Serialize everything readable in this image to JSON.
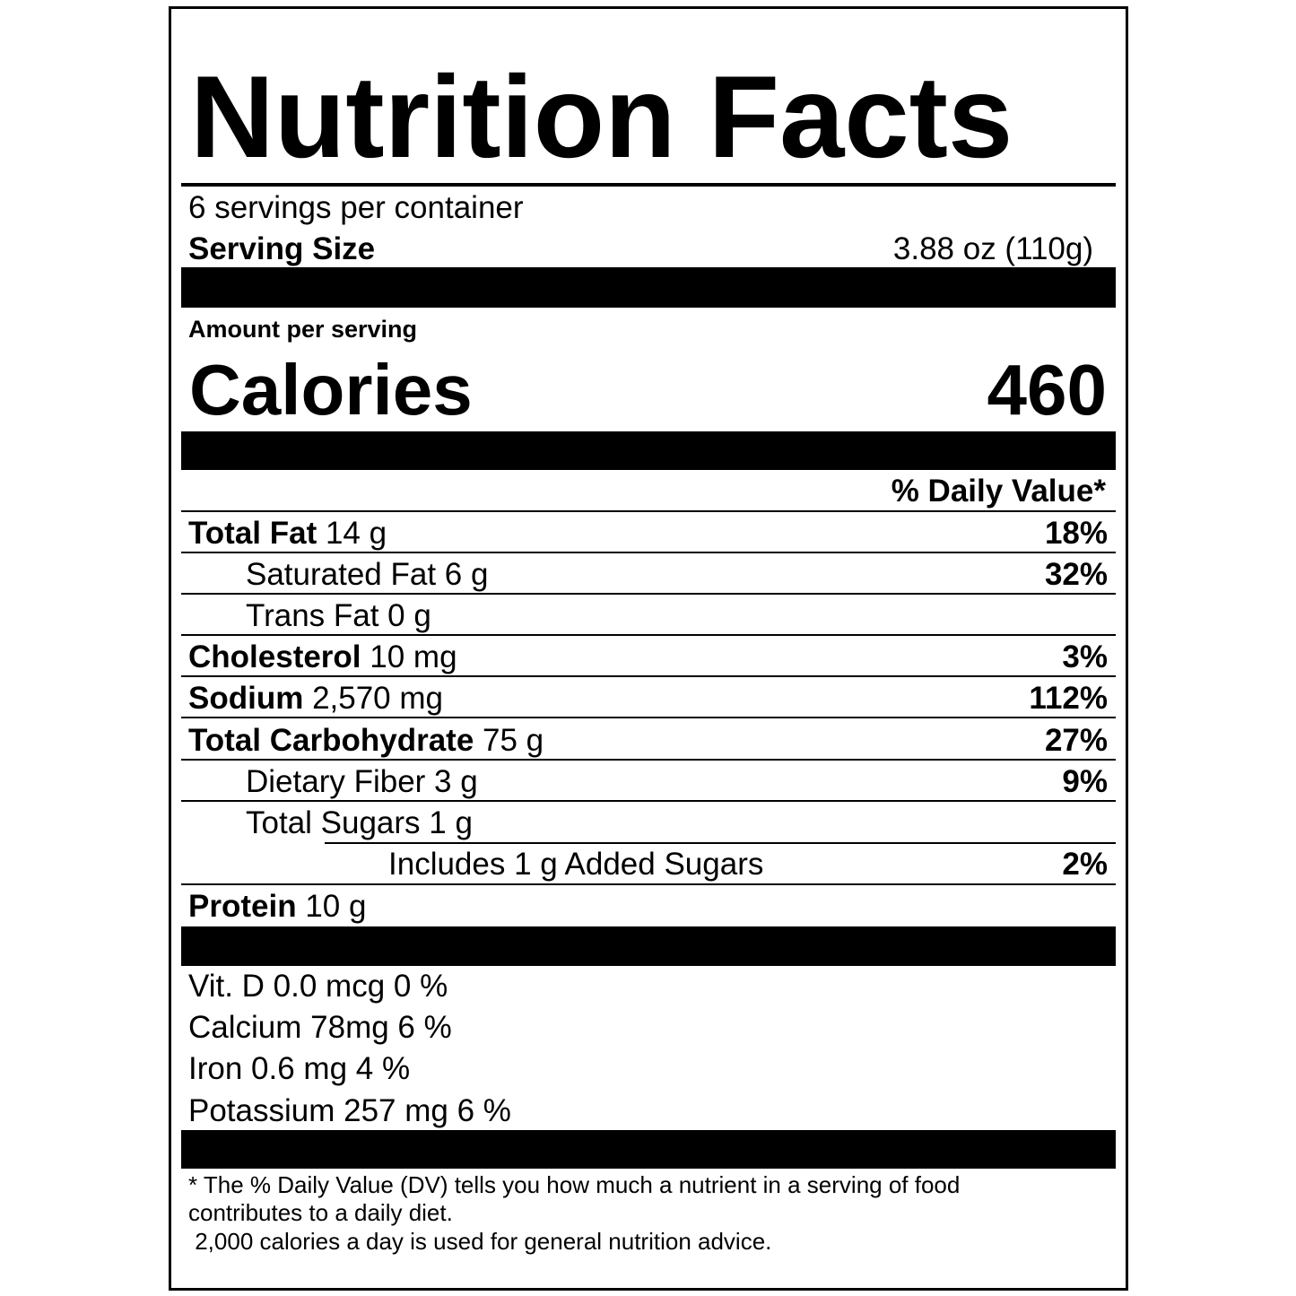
{
  "title": "Nutrition Facts",
  "servings": "6 servings per container",
  "serving_size": {
    "label": "Serving Size",
    "value": "3.88 oz (110g)"
  },
  "amount_per_serving": "Amount per serving",
  "calories": {
    "label": "Calories",
    "value": 460
  },
  "daily_value_header": "% Daily Value*",
  "nutrients": [
    {
      "name": "Total Fat",
      "amount": "14 g",
      "dv": "18%"
    },
    {
      "name": "Saturated Fat 6 g",
      "dv": "32%"
    },
    {
      "name": "Trans Fat 0 g"
    },
    {
      "name": "Cholesterol",
      "amount": "10 mg",
      "dv": "3%"
    },
    {
      "name": "Sodium",
      "amount": "2,570 mg",
      "dv": "112%"
    },
    {
      "name": "Total Carbohydrate",
      "amount": "75 g",
      "dv": "27%"
    },
    {
      "name": "Dietary Fiber 3 g",
      "dv": "9%"
    },
    {
      "name": "Total Sugars 1 g"
    },
    {
      "name": "Includes 1 g Added Sugars",
      "dv": "2%"
    },
    {
      "name": "Protein",
      "amount": "10 g"
    }
  ],
  "vitamins": [
    "Vit. D 0.0 mcg 0 %",
    "Calcium 78mg 6 %",
    "Iron 0.6 mg 4 %",
    "Potassium 257 mg 6 %"
  ],
  "footnote": [
    "* The % Daily Value (DV) tells you how much a nutrient in a serving of food",
    "contributes to a daily diet.",
    " 2,000 calories a day is used for general nutrition advice."
  ]
}
